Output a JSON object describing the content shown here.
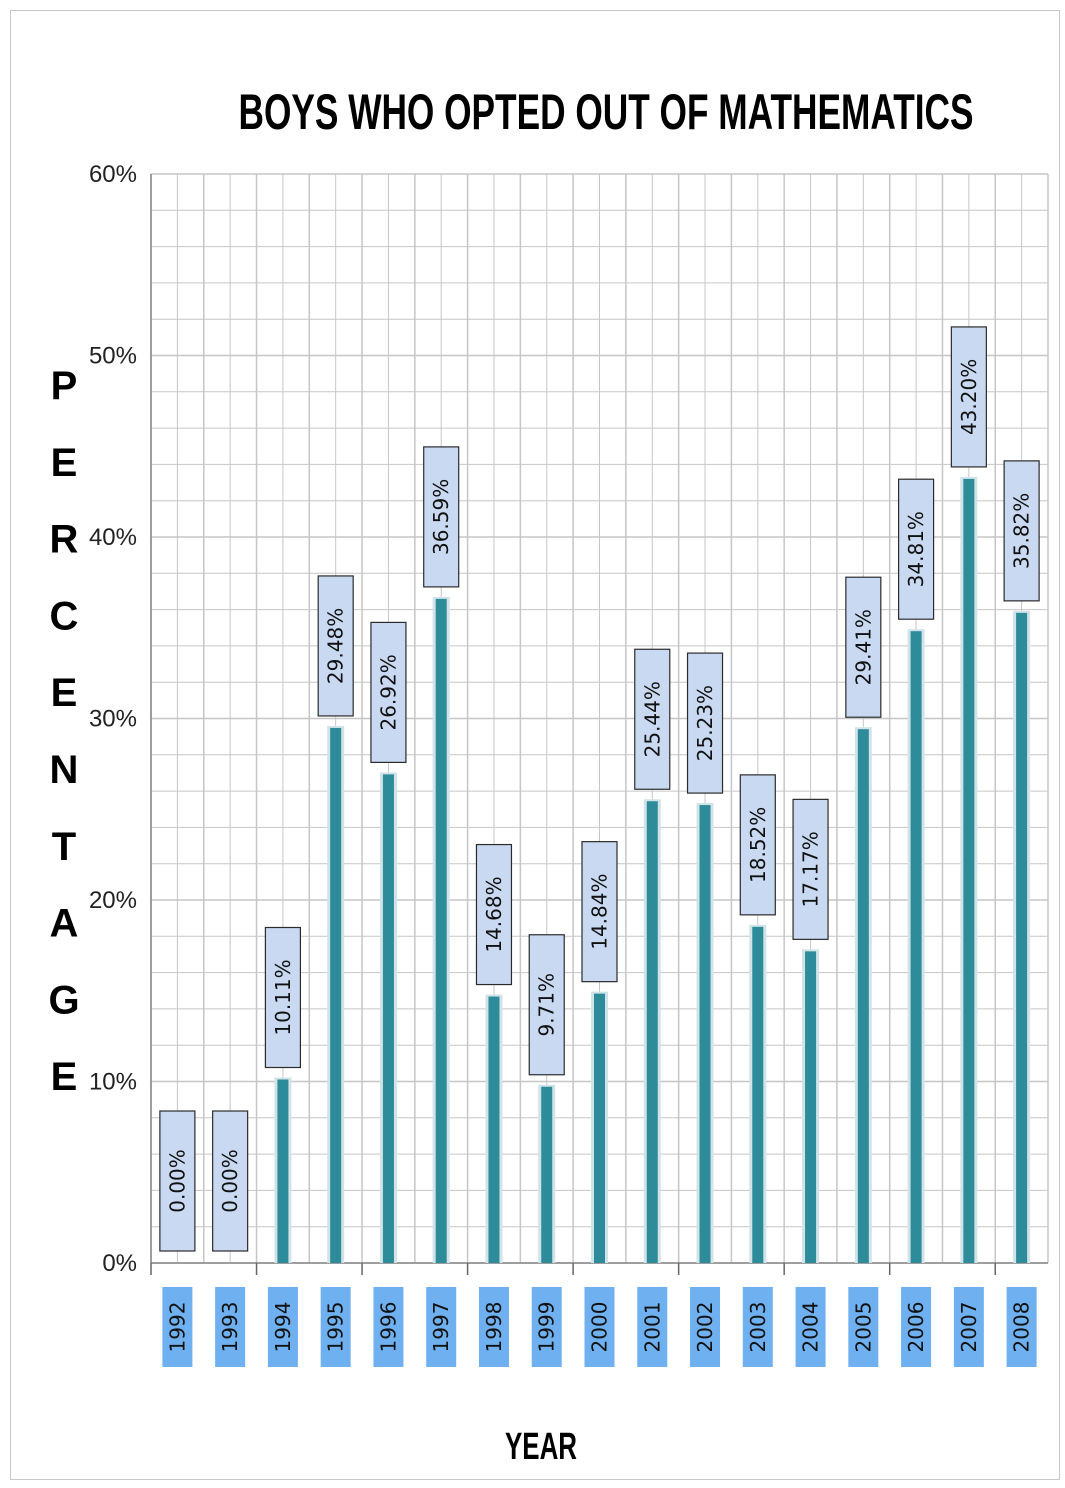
{
  "chart_data": {
    "type": "bar",
    "title": "BOYS WHO OPTED OUT OF MATHEMATICS",
    "xlabel": "YEAR",
    "ylabel": "PERCENTAGE",
    "categories": [
      "1992",
      "1993",
      "1994",
      "1995",
      "1996",
      "1997",
      "1998",
      "1999",
      "2000",
      "2001",
      "2002",
      "2003",
      "2004",
      "2005",
      "2006",
      "2007",
      "2008"
    ],
    "values": [
      0.0,
      0.0,
      10.11,
      29.48,
      26.92,
      36.59,
      14.68,
      9.71,
      14.84,
      25.44,
      25.23,
      18.52,
      17.17,
      29.41,
      34.81,
      43.2,
      35.82
    ],
    "value_labels": [
      "0.00%",
      "0.00%",
      "10.11%",
      "29.48%",
      "26.92%",
      "36.59%",
      "14.68%",
      "9.71%",
      "14.84%",
      "25.44%",
      "25.23%",
      "18.52%",
      "17.17%",
      "29.41%",
      "34.81%",
      "43.20%",
      "35.82%"
    ],
    "ylim": [
      0,
      60
    ],
    "yticks": [
      "0%",
      "10%",
      "20%",
      "30%",
      "40%",
      "50%",
      "60%"
    ],
    "grid": true,
    "legend": "none",
    "colors": {
      "bar": "#2e8b9a",
      "bar_edge": "#cfe3e8",
      "label_bg": "#c9d9f2",
      "label_border": "#2b2b2b",
      "category_bg": "#6fb0f0",
      "grid": "#c6c6c6"
    }
  }
}
